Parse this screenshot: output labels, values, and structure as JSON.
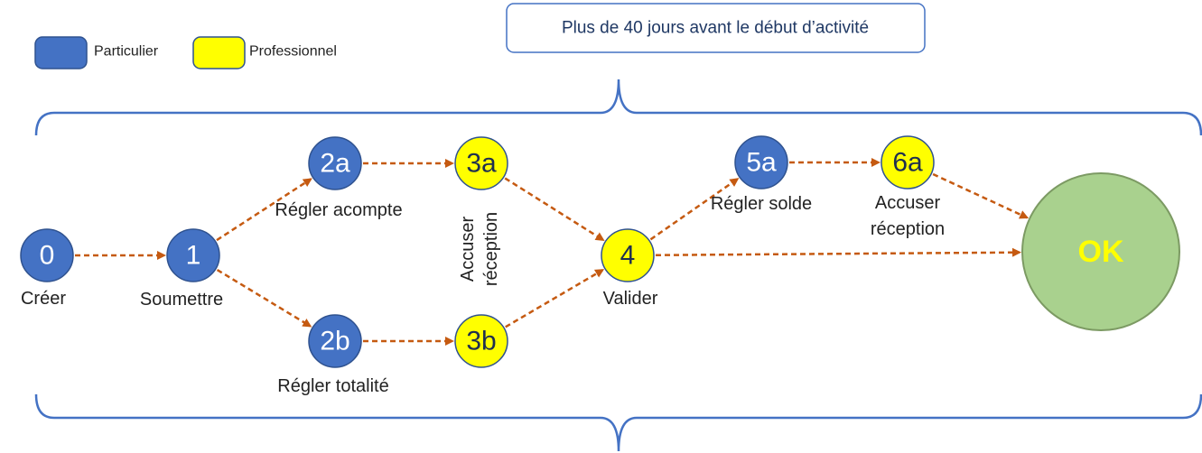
{
  "colors": {
    "particulier": "#4472c4",
    "professionnel": "#ffff00",
    "ok": "#a9d18e",
    "arrow": "#c55a11",
    "brace": "#4472c4"
  },
  "banner": {
    "text": "Plus de 40 jours avant le début d’activité"
  },
  "legend": [
    {
      "id": "particulier",
      "label": "Particulier",
      "type": "particulier"
    },
    {
      "id": "professionnel",
      "label": "Professionnel",
      "type": "professionnel"
    }
  ],
  "nodes": [
    {
      "id": "0",
      "label": "0",
      "type": "particulier",
      "caption": [
        "Créer"
      ]
    },
    {
      "id": "1",
      "label": "1",
      "type": "particulier",
      "caption": [
        "Soumettre"
      ]
    },
    {
      "id": "2a",
      "label": "2a",
      "type": "particulier",
      "caption": [
        "Régler acompte"
      ]
    },
    {
      "id": "2b",
      "label": "2b",
      "type": "particulier",
      "caption": [
        "Régler totalité"
      ]
    },
    {
      "id": "3a",
      "label": "3a",
      "type": "professionnel",
      "caption": []
    },
    {
      "id": "3b",
      "label": "3b",
      "type": "professionnel",
      "caption": []
    },
    {
      "id": "4",
      "label": "4",
      "type": "professionnel",
      "caption": [
        "Valider"
      ]
    },
    {
      "id": "5a",
      "label": "5a",
      "type": "particulier",
      "caption": [
        "Régler solde"
      ]
    },
    {
      "id": "6a",
      "label": "6a",
      "type": "professionnel",
      "caption": [
        "Accuser",
        "réception"
      ]
    },
    {
      "id": "ok",
      "label": "OK",
      "type": "ok",
      "caption": []
    }
  ],
  "vertical_caption": {
    "lines": [
      "Accuser",
      "réception"
    ]
  },
  "edges": [
    [
      "0",
      "1"
    ],
    [
      "1",
      "2a"
    ],
    [
      "1",
      "2b"
    ],
    [
      "2a",
      "3a"
    ],
    [
      "2b",
      "3b"
    ],
    [
      "3a",
      "4"
    ],
    [
      "3b",
      "4"
    ],
    [
      "4",
      "5a"
    ],
    [
      "5a",
      "6a"
    ],
    [
      "6a",
      "ok"
    ],
    [
      "4",
      "ok"
    ]
  ]
}
